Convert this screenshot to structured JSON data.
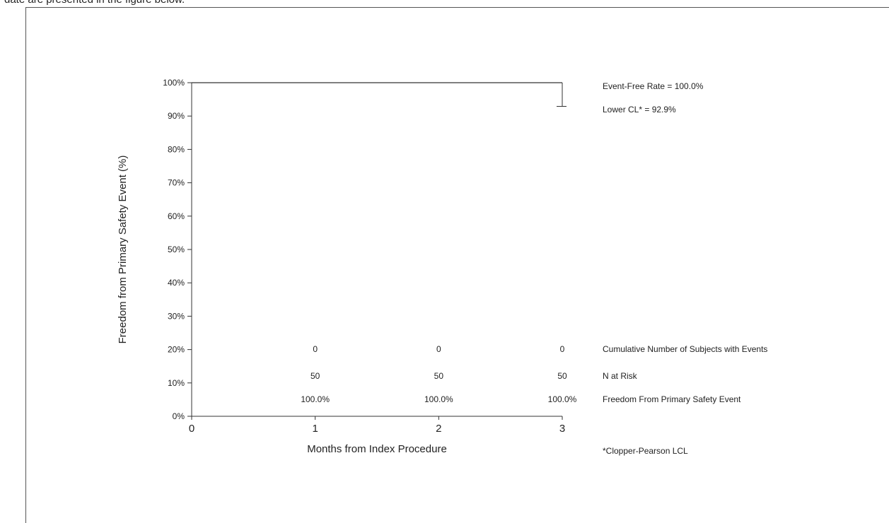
{
  "document": {
    "intro_text": "date are presented in the figure below."
  },
  "chart_data": {
    "type": "line",
    "ylabel": "Freedom from Primary Safety Event (%)",
    "xlabel": "Months from Index Procedure",
    "xlim": [
      0,
      3
    ],
    "ylim": [
      0,
      100
    ],
    "x_ticks": [
      "0",
      "1",
      "2",
      "3"
    ],
    "y_ticks": [
      "0%",
      "10%",
      "20%",
      "30%",
      "40%",
      "50%",
      "60%",
      "70%",
      "80%",
      "90%",
      "100%"
    ],
    "grid": false,
    "series": [
      {
        "x": [
          0,
          3
        ],
        "y": [
          100,
          100
        ]
      }
    ],
    "lower_cl_bar": {
      "x": 3,
      "y_upper": 100,
      "y_lower": 92.9
    },
    "annotations": {
      "event_free_rate": "Event-Free Rate = 100.0%",
      "lower_cl": "Lower CL* = 92.9%",
      "footnote": "*Clopper-Pearson LCL"
    },
    "risk_table": {
      "x": [
        1,
        2,
        3
      ],
      "rows": [
        {
          "label": "Cumulative Number of Subjects with Events",
          "values": [
            "0",
            "0",
            "0"
          ]
        },
        {
          "label": "N at Risk",
          "values": [
            "50",
            "50",
            "50"
          ]
        },
        {
          "label": "Freedom From Primary Safety Event",
          "values": [
            "100.0%",
            "100.0%",
            "100.0%"
          ]
        }
      ]
    }
  }
}
